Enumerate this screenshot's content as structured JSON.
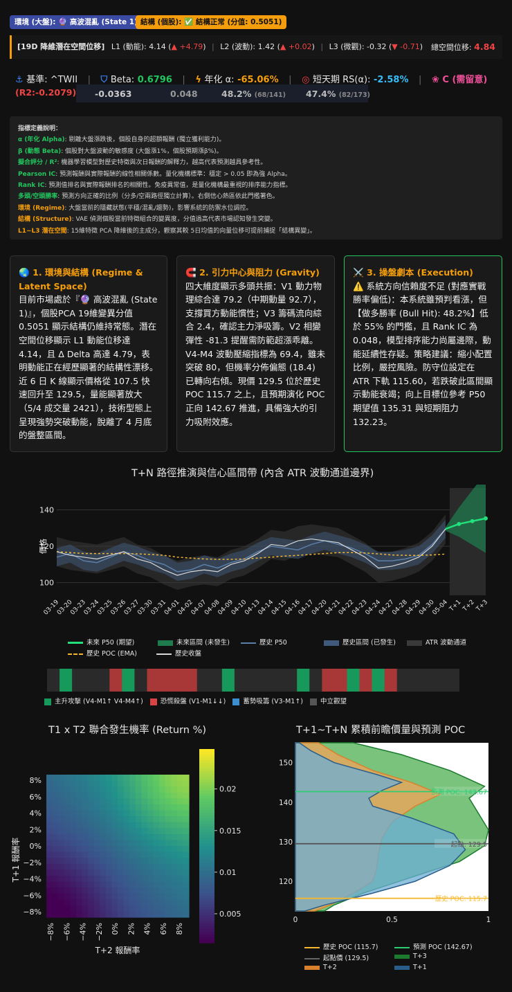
{
  "badges": {
    "env": "環境 (大盤): 🔮 高波混亂 (State 1)",
    "struct": "結構 (個股): ✅ 結構正常 (分值: 0.5051)"
  },
  "topbar": {
    "label": "[19D 降維潛在空間位移]",
    "l1": "L1 (動能): 4.14 (",
    "l1_delta": "▲ +4.79",
    "l2": "L2 (波動): 1.42 (",
    "l2_delta": "▲ +0.02",
    "l3": "L3 (微觀): -0.32 (",
    "l3_delta": "▼ -0.71",
    "close": ")",
    "total_label": "總空間位移:",
    "total_value": "4.84"
  },
  "metrics": {
    "benchmark_label": "基準: ^TWII",
    "beta_label": "Beta:",
    "beta_value": "0.6796",
    "alpha_label": "年化 α:",
    "alpha_value": "-65.06%",
    "rs_label": "短天期 RS(α):",
    "rs_value": "-2.58%",
    "grade": "C (需留意)",
    "r2": "(R2:-0.2079)",
    "sub1": "-0.0363",
    "sub2": "0.048",
    "sub3": "48.2%",
    "sub3_small": "(68/141)",
    "sub4": "47.4%",
    "sub4_small": "(82/173)"
  },
  "definitions": {
    "title": "指標定義說明：",
    "items": [
      {
        "k": "α (年化 Alpha)",
        "v": ": 剔離大盤漲跌後，個股自身的超額報酬 (獨立獲利能力)。",
        "c": "#22c55e"
      },
      {
        "k": "β (動態 Beta)",
        "v": ": 個股對大盤波動的敏感度 (大盤漲1%，個股預期漲β%)。",
        "c": "#22c55e"
      },
      {
        "k": "擬合評分 / R²",
        "v": ": 機器學習模型對歷史特徵與次日報酬的解釋力，越高代表預測越具參考性。",
        "c": "#22c55e"
      },
      {
        "k": "Pearson IC",
        "v": ": 預測報酬與實際報酬的線性相關係數。量化機構標準：穩定 > 0.05 即為強 Alpha。",
        "c": "#22c55e"
      },
      {
        "k": "Rank IC",
        "v": ": 預測值排名與實際報酬排名的相關性。免疫異常值，是量化機構最重視的排序能力指標。",
        "c": "#22c55e"
      },
      {
        "k": "多頭/空頭勝率",
        "v": ": 預測方向正確的比例（分多/空兩路徑獨立計算）。右側信心熱區依此門檻著色。",
        "c": "#22c55e"
      },
      {
        "k": "環境 (Regime)",
        "v": ": 大盤當前的隱藏狀態(平穩/混亂/趨勢)，影響系統的防禦水位調控。",
        "c": "#f59e0b"
      },
      {
        "k": "結構 (Structure)",
        "v": ": VAE 偵測個股當前特徵組合的變異度，分值過高代表市場認知發生突變。",
        "c": "#f59e0b"
      },
      {
        "k": "L1~L3 潛在空間",
        "v": ": 15維特徵 PCA 降維後的主成分，觀察其較 5日均值的向量位移可提前捕捉「結構異變」。",
        "c": "#f59e0b"
      }
    ]
  },
  "cards": [
    {
      "icon": "🌏",
      "title": "1. 環境與結構 (Regime & Latent Space)",
      "body": "目前市場處於『🔮 高波混亂 (State 1)』，個股PCA 19維變異分值 0.5051 顯示結構仍維持常態。潛在空間位移顯示 L1 動能位移達 4.14，且 Δ Delta 高達 4.79，表明動能正在經歷顯著的結構性漂移。近 6 日 K 線顯示價格從 107.5 快速回升至 129.5，量能顯著放大（5/4 成交量 2421），技術型態上呈現強勢突破動能，脫離了 4 月底的盤整區間。"
    },
    {
      "icon": "🧲",
      "title": "2. 引力中心與阻力 (Gravity)",
      "body": "四大維度顯示多頭共振：V1 動力物理綜合達 79.2（中期動量 92.7），支撐買方動能慣性；V3 籌碼流向綜合 2.4，確認主力淨吸籌。V2 相變彈性 -81.3 提醒需防範超漲乖離。V4-M4 波動壓縮指標為 69.4，雖未突破 80，但機率分佈偏態 (18.4) 已轉向右傾。現價 129.5 位於歷史 POC 115.7 之上，且預期演化 POC 正向 142.67 推進，具備強大的引力吸附效應。"
    },
    {
      "icon": "⚔️",
      "title": "3. 操盤劇本 (Execution)",
      "body": "⚠️ 系統方向信賴度不足 (對應實戰勝率偏低)：本系統雖預判看漲，但【做多勝率 (Bull Hit): 48.2%】低於 55% 的門檻，且 Rank IC 為 0.048，模型排序能力尚屬邊際，動能延續性存疑。策略建議：縮小配置比例，嚴控風險。防守位設定在 ATR 下軌 115.60，若跌破此區間顯示動能衰竭；向上目標位參考 P50 期望值 135.31 與短期阻力 132.23。"
    }
  ],
  "path_chart": {
    "title": "T+N 路徑推演與信心區間帶 (內含 ATR 波動通道邊界)",
    "ylabel": "價格",
    "yticks": [
      100,
      120,
      140
    ],
    "ylim": [
      93,
      152
    ],
    "dates": [
      "03-19",
      "03-20",
      "03-23",
      "03-24",
      "03-25",
      "03-26",
      "03-27",
      "03-30",
      "03-31",
      "04-01",
      "04-02",
      "04-07",
      "04-08",
      "04-09",
      "04-10",
      "04-13",
      "04-14",
      "04-15",
      "04-16",
      "04-17",
      "04-20",
      "04-21",
      "04-22",
      "04-23",
      "04-24",
      "04-27",
      "04-28",
      "04-29",
      "04-30",
      "05-04",
      "T+1",
      "T+2",
      "T+3"
    ],
    "hist_p50": [
      114,
      116,
      112,
      111,
      114,
      117,
      115,
      112,
      110,
      106,
      107,
      110,
      108,
      111,
      113,
      117,
      120,
      119,
      118,
      121,
      123,
      121,
      119,
      116,
      112,
      112,
      113,
      115,
      121,
      129.5
    ],
    "hist_close": [
      117,
      115,
      114,
      113,
      115,
      117,
      113,
      111,
      107,
      104,
      106,
      107,
      106,
      110,
      112,
      116,
      121,
      120,
      123,
      124,
      123,
      122,
      118,
      114,
      108,
      109,
      111,
      114,
      120,
      129.5
    ],
    "poc_ema": [
      117,
      116.5,
      116,
      116,
      116,
      116,
      115.8,
      115.5,
      115,
      114,
      113.5,
      113,
      112.8,
      112.8,
      113,
      113.5,
      114,
      114.6,
      115,
      115.5,
      116,
      116.5,
      116.5,
      116.3,
      115.8,
      115.2,
      115,
      115,
      115.2,
      115.7
    ],
    "future_p50": [
      129.5,
      132.23,
      133.8,
      135.31
    ],
    "legend": [
      "未來 P50 (期望)",
      "未來區間 (未發生)",
      "歷史 P50",
      "歷史區間 (已發生)",
      "ATR 波動通道",
      "歷史 POC (EMA)",
      "歷史收盤"
    ]
  },
  "regime_strip": {
    "cells": [
      "n",
      "g",
      "n",
      "n",
      "n",
      "r",
      "g",
      "n",
      "r",
      "r",
      "r",
      "r",
      "n",
      "n",
      "g",
      "n",
      "n",
      "n",
      "n",
      "n",
      "g",
      "n",
      "r",
      "r",
      "g",
      "r",
      "g",
      "r",
      "n",
      "n",
      "n",
      "n",
      "n"
    ],
    "legend": [
      "主升攻擊 (V4-M1↑ V4-M4↑)",
      "恐慌殺盤 (V1-M1↓↓)",
      "蓄勢吸籌 (V3-M1↑)",
      "中立觀望"
    ]
  },
  "heatmap": {
    "title": "T1 x T2 聯合發生機率 (Return %)",
    "ylabel": "T+1 報酬率",
    "xlabel": "T+2 報酬率",
    "ticks": [
      "−8%",
      "−6%",
      "−4%",
      "−2%",
      "0%",
      "2%",
      "4%",
      "6%",
      "8%"
    ],
    "yticks": [
      "8%",
      "6%",
      "4%",
      "2%",
      "0%",
      "−2%",
      "−4%",
      "−6%",
      "−8%"
    ],
    "cbar_ticks": [
      "0.02",
      "0.015",
      "0.01",
      "0.005"
    ]
  },
  "volume": {
    "title": "T+1~T+N 累積前瞻價量與預測 POC",
    "yticks": [
      "150",
      "140",
      "130",
      "120"
    ],
    "xticks": [
      "0",
      "0.5",
      "1"
    ],
    "pred_poc_label": "預測 POC: 142.67",
    "start_label": "起點: 129.5",
    "hist_poc_label": "歷史 POC: 115.7",
    "pred_poc": 142.67,
    "start": 129.5,
    "hist_poc": 115.7,
    "legend": [
      "歷史 POC (115.7)",
      "預測 POC (142.67)",
      "起點價 (129.5)",
      "T+3",
      "T+2",
      "T+1"
    ]
  }
}
